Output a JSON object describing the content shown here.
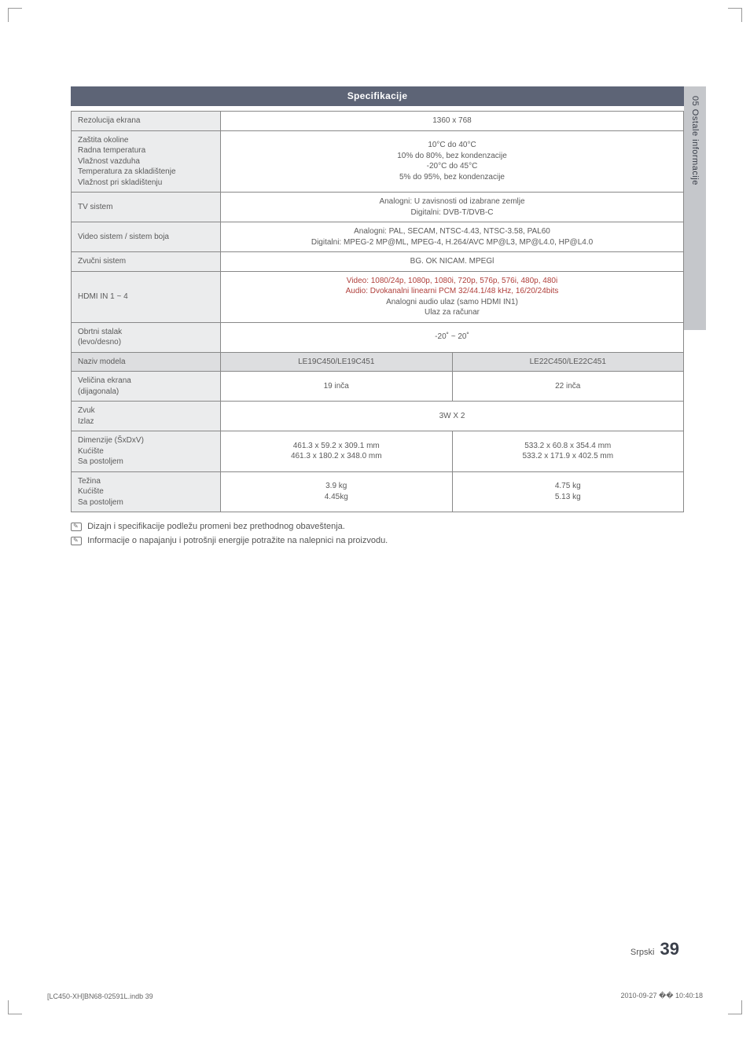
{
  "side_tab": "05  Ostale informacije",
  "header": "Specifikacije",
  "rows_top": [
    {
      "label": "Rezolucija ekrana",
      "value": "1360 x 768"
    },
    {
      "label": "Zaštita okoline\nRadna temperatura\nVlažnost vazduha\nTemperatura za skladištenje\nVlažnost pri skladištenju",
      "value": "10°C do 40°C\n10% do 80%, bez kondenzacije\n-20°C do 45°C\n5% do 95%, bez kondenzacije"
    },
    {
      "label": "TV sistem",
      "value": "Analogni: U zavisnosti od izabrane zemlje\nDigitalni: DVB-T/DVB-C"
    },
    {
      "label": "Video sistem / sistem boja",
      "value": "Analogni: PAL, SECAM, NTSC-4.43, NTSC-3.58, PAL60\nDigitalni: MPEG-2 MP@ML, MPEG-4, H.264/AVC MP@L3, MP@L4.0, HP@L4.0"
    },
    {
      "label": "Zvučni sistem",
      "value": "BG. OK NICAM. MPEGl"
    },
    {
      "label": "HDMI IN 1 ~ 4",
      "value_red": "Video: 1080/24p, 1080p, 1080i, 720p, 576p, 576i, 480p, 480i\nAudio: Dvokanalni linearni PCM 32/44.1/48 kHz, 16/20/24bits",
      "value_black": "Analogni audio ulaz (samo HDMI IN1)\nUlaz za računar"
    },
    {
      "label": "Obrtni stalak\n(levo/desno)",
      "value": "-20˚ ~ 20˚"
    }
  ],
  "model_row": {
    "label": "Naziv modela",
    "col1": "LE19C450/LE19C451",
    "col2": "LE22C450/LE22C451"
  },
  "rows_bottom": [
    {
      "label": "Veličina ekrana\n(dijagonala)",
      "col1": "19 inča",
      "col2": "22 inča"
    },
    {
      "label": "Zvuk\nIzlaz",
      "merged": "3W X 2"
    },
    {
      "label": "Dimenzije (ŠxDxV)\nKućište\nSa postoljem",
      "col1": "461.3 x 59.2 x 309.1 mm\n461.3 x 180.2 x 348.0 mm",
      "col2": "533.2 x 60.8 x 354.4 mm\n533.2 x 171.9 x 402.5 mm"
    },
    {
      "label": "Težina\nKućište\nSa postoljem",
      "col1": "3.9 kg\n4.45kg",
      "col2": "4.75 kg\n5.13 kg"
    }
  ],
  "notes": [
    "Dizajn i specifikacije podležu promeni bez prethodnog obaveštenja.",
    "Informacije o napajanju i potrošnji energije potražite na nalepnici na proizvodu."
  ],
  "page_lang": "Srpski",
  "page_num": "39",
  "footer_left": "[LC450-XH]BN68-02591L.indb   39",
  "footer_right": "2010-09-27   �� 10:40:18",
  "colors": {
    "header_bg": "#5d6476",
    "label_bg": "#ebeced",
    "model_bg": "#dddee0",
    "side_bg": "#c5c7cb",
    "red": "#b0403c"
  }
}
